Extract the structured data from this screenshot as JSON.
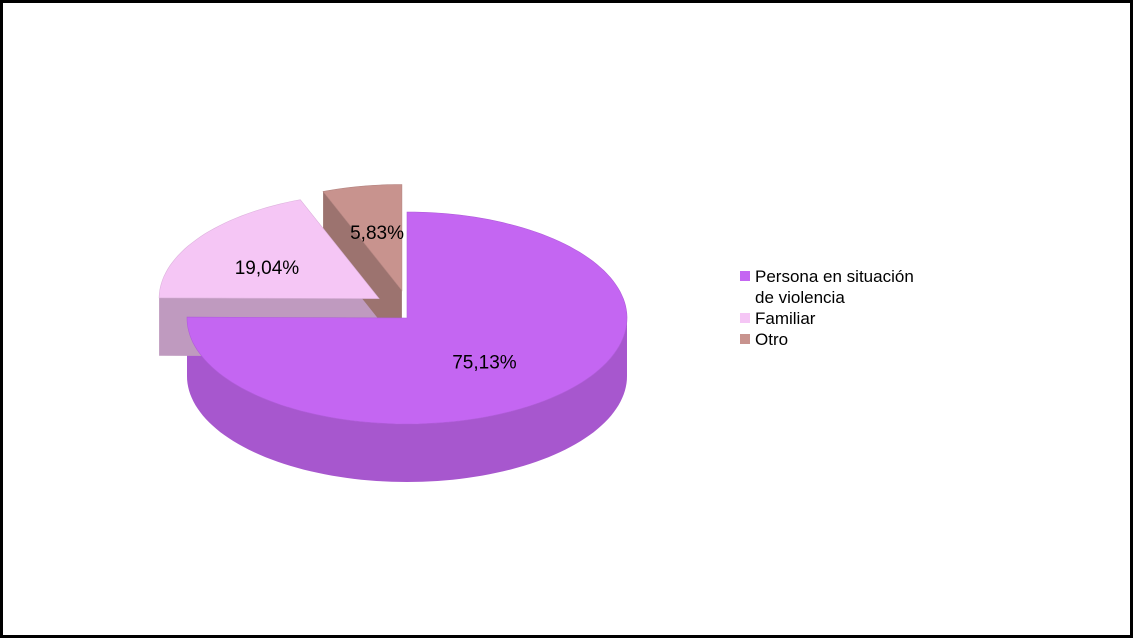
{
  "chart_data": {
    "type": "pie",
    "categories": [
      "Persona en situación de violencia",
      "Familiar",
      "Otro"
    ],
    "values": [
      75.13,
      19.04,
      5.83
    ],
    "value_labels": [
      "75,13%",
      "19,04%",
      "5,83%"
    ],
    "colors": [
      "#c466f2",
      "#f5c6f5",
      "#c8938e"
    ],
    "legend": "right"
  }
}
